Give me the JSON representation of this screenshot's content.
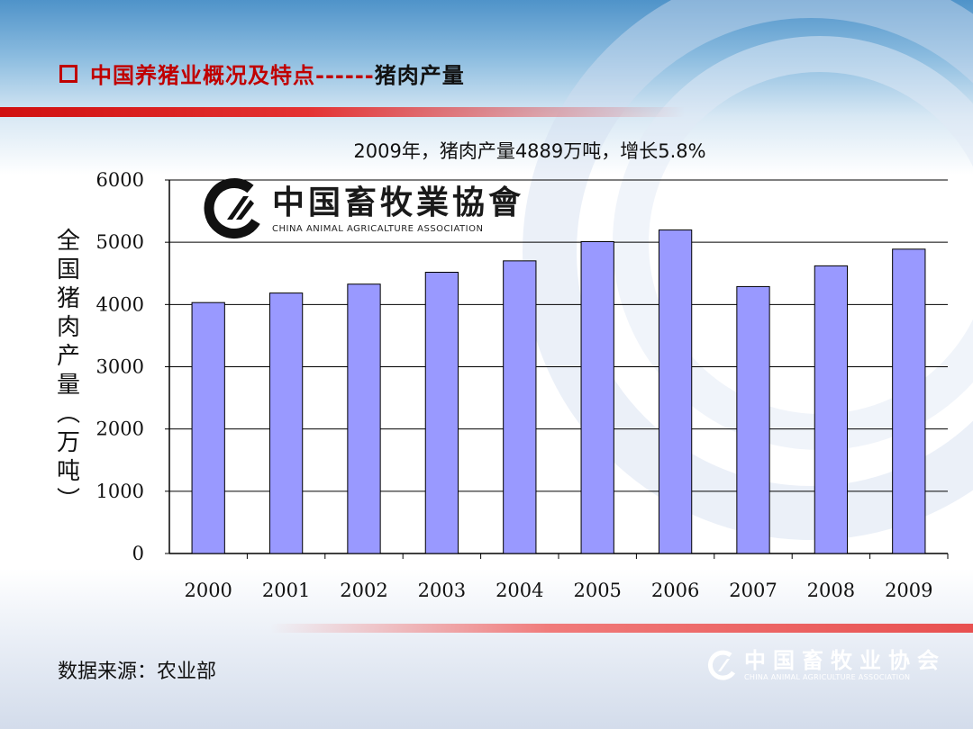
{
  "slide": {
    "title_main": "中国养猪业概况及特点------",
    "title_suffix": "猪肉产量",
    "source": "数据来源：农业部"
  },
  "brand": {
    "cn": "中国畜牧業協會",
    "en": "CHINA ANIMAL AGRICALTURE ASSOCIATION",
    "footer_cn": "中国畜牧业协会",
    "footer_en": "CHINA ANIMAL AGRICULTURE ASSOCIATION"
  },
  "colors": {
    "bar": "#9999ff",
    "title_red": "#c00000"
  },
  "chart_data": {
    "type": "bar",
    "title": "2009年，猪肉产量4889万吨，增长5.8%",
    "ylabel": "全国猪肉产量（万吨）",
    "xlabel": "",
    "categories": [
      "2000",
      "2001",
      "2002",
      "2003",
      "2004",
      "2005",
      "2006",
      "2007",
      "2008",
      "2009"
    ],
    "values": [
      4031,
      4184,
      4327,
      4518,
      4701,
      5010,
      5197,
      4288,
      4621,
      4889
    ],
    "ylim": [
      0,
      6000
    ],
    "yticks": [
      0,
      1000,
      2000,
      3000,
      4000,
      5000,
      6000
    ],
    "grid": true
  }
}
